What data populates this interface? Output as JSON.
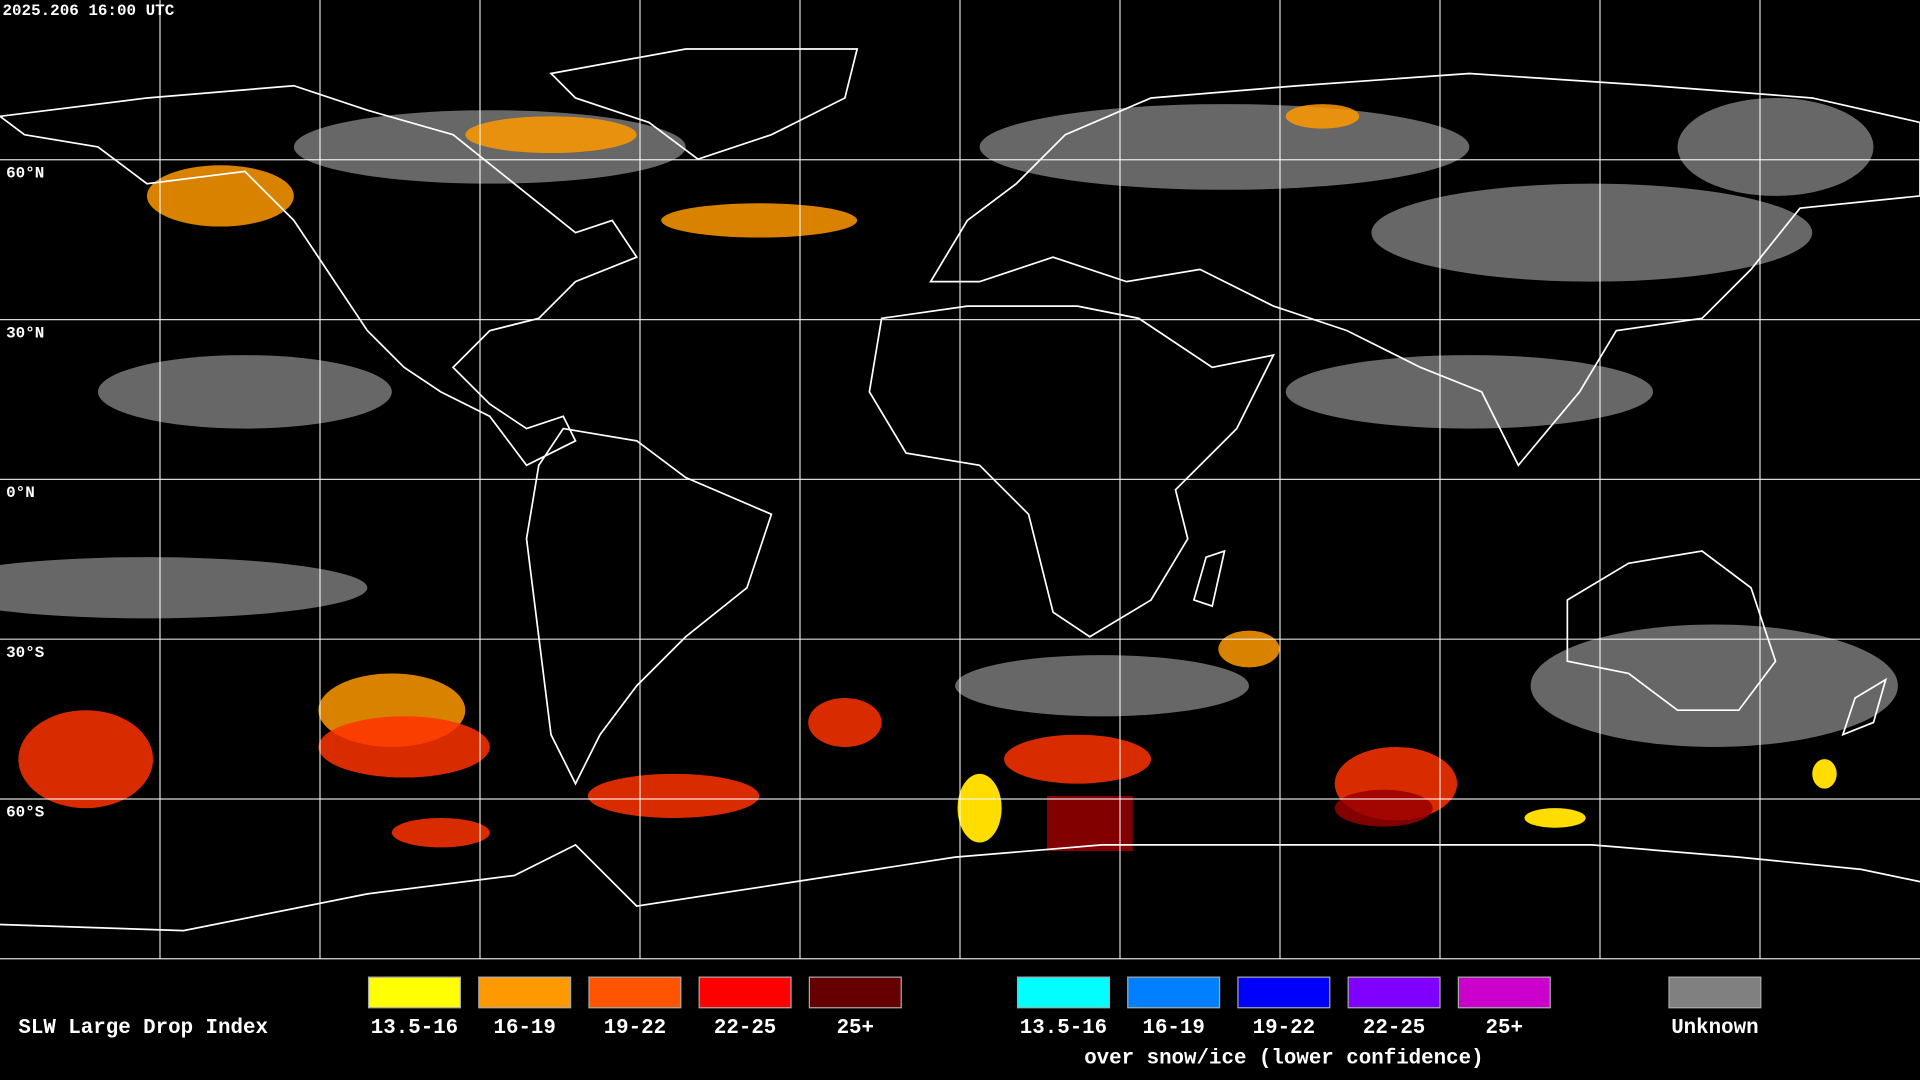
{
  "header": {
    "timestamp": "2025.206 16:00 UTC"
  },
  "map": {
    "latitude_labels": [
      "60°N",
      "30°N",
      "0°N",
      "30°S",
      "60°S"
    ]
  },
  "legend": {
    "title": "SLW Large Drop Index",
    "groups": [
      {
        "items": [
          {
            "label": "13.5-16",
            "color": "#ffff00"
          },
          {
            "label": "16-19",
            "color": "#ff9900"
          },
          {
            "label": "19-22",
            "color": "#ff5500"
          },
          {
            "label": "22-25",
            "color": "#ff0000"
          },
          {
            "label": "25+",
            "color": "#660000"
          }
        ]
      },
      {
        "items": [
          {
            "label": "13.5-16",
            "color": "#00ffff"
          },
          {
            "label": "16-19",
            "color": "#0080ff"
          },
          {
            "label": "19-22",
            "color": "#0000ff"
          },
          {
            "label": "22-25",
            "color": "#7f00ff"
          },
          {
            "label": "25+",
            "color": "#cc00cc"
          }
        ],
        "caption": "over snow/ice (lower confidence)"
      },
      {
        "items": [
          {
            "label": "Unknown",
            "color": "#808080"
          }
        ]
      }
    ]
  }
}
